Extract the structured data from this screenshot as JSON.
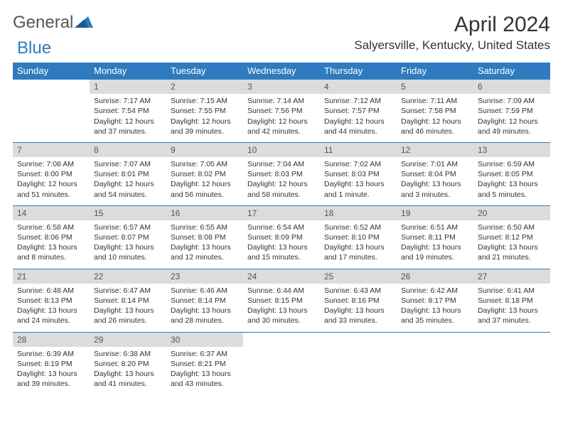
{
  "brand": {
    "general": "General",
    "blue": "Blue"
  },
  "title": "April 2024",
  "location": "Salyersville, Kentucky, United States",
  "colors": {
    "header_bg": "#2f7bbf",
    "header_text": "#ffffff",
    "daynum_bg": "#dcdcdc",
    "border": "#2f7bbf",
    "text": "#333333"
  },
  "weekdays": [
    "Sunday",
    "Monday",
    "Tuesday",
    "Wednesday",
    "Thursday",
    "Friday",
    "Saturday"
  ],
  "weeks": [
    [
      null,
      {
        "n": "1",
        "sr": "Sunrise: 7:17 AM",
        "ss": "Sunset: 7:54 PM",
        "d1": "Daylight: 12 hours",
        "d2": "and 37 minutes."
      },
      {
        "n": "2",
        "sr": "Sunrise: 7:15 AM",
        "ss": "Sunset: 7:55 PM",
        "d1": "Daylight: 12 hours",
        "d2": "and 39 minutes."
      },
      {
        "n": "3",
        "sr": "Sunrise: 7:14 AM",
        "ss": "Sunset: 7:56 PM",
        "d1": "Daylight: 12 hours",
        "d2": "and 42 minutes."
      },
      {
        "n": "4",
        "sr": "Sunrise: 7:12 AM",
        "ss": "Sunset: 7:57 PM",
        "d1": "Daylight: 12 hours",
        "d2": "and 44 minutes."
      },
      {
        "n": "5",
        "sr": "Sunrise: 7:11 AM",
        "ss": "Sunset: 7:58 PM",
        "d1": "Daylight: 12 hours",
        "d2": "and 46 minutes."
      },
      {
        "n": "6",
        "sr": "Sunrise: 7:09 AM",
        "ss": "Sunset: 7:59 PM",
        "d1": "Daylight: 12 hours",
        "d2": "and 49 minutes."
      }
    ],
    [
      {
        "n": "7",
        "sr": "Sunrise: 7:08 AM",
        "ss": "Sunset: 8:00 PM",
        "d1": "Daylight: 12 hours",
        "d2": "and 51 minutes."
      },
      {
        "n": "8",
        "sr": "Sunrise: 7:07 AM",
        "ss": "Sunset: 8:01 PM",
        "d1": "Daylight: 12 hours",
        "d2": "and 54 minutes."
      },
      {
        "n": "9",
        "sr": "Sunrise: 7:05 AM",
        "ss": "Sunset: 8:02 PM",
        "d1": "Daylight: 12 hours",
        "d2": "and 56 minutes."
      },
      {
        "n": "10",
        "sr": "Sunrise: 7:04 AM",
        "ss": "Sunset: 8:03 PM",
        "d1": "Daylight: 12 hours",
        "d2": "and 58 minutes."
      },
      {
        "n": "11",
        "sr": "Sunrise: 7:02 AM",
        "ss": "Sunset: 8:03 PM",
        "d1": "Daylight: 13 hours",
        "d2": "and 1 minute."
      },
      {
        "n": "12",
        "sr": "Sunrise: 7:01 AM",
        "ss": "Sunset: 8:04 PM",
        "d1": "Daylight: 13 hours",
        "d2": "and 3 minutes."
      },
      {
        "n": "13",
        "sr": "Sunrise: 6:59 AM",
        "ss": "Sunset: 8:05 PM",
        "d1": "Daylight: 13 hours",
        "d2": "and 5 minutes."
      }
    ],
    [
      {
        "n": "14",
        "sr": "Sunrise: 6:58 AM",
        "ss": "Sunset: 8:06 PM",
        "d1": "Daylight: 13 hours",
        "d2": "and 8 minutes."
      },
      {
        "n": "15",
        "sr": "Sunrise: 6:57 AM",
        "ss": "Sunset: 8:07 PM",
        "d1": "Daylight: 13 hours",
        "d2": "and 10 minutes."
      },
      {
        "n": "16",
        "sr": "Sunrise: 6:55 AM",
        "ss": "Sunset: 8:08 PM",
        "d1": "Daylight: 13 hours",
        "d2": "and 12 minutes."
      },
      {
        "n": "17",
        "sr": "Sunrise: 6:54 AM",
        "ss": "Sunset: 8:09 PM",
        "d1": "Daylight: 13 hours",
        "d2": "and 15 minutes."
      },
      {
        "n": "18",
        "sr": "Sunrise: 6:52 AM",
        "ss": "Sunset: 8:10 PM",
        "d1": "Daylight: 13 hours",
        "d2": "and 17 minutes."
      },
      {
        "n": "19",
        "sr": "Sunrise: 6:51 AM",
        "ss": "Sunset: 8:11 PM",
        "d1": "Daylight: 13 hours",
        "d2": "and 19 minutes."
      },
      {
        "n": "20",
        "sr": "Sunrise: 6:50 AM",
        "ss": "Sunset: 8:12 PM",
        "d1": "Daylight: 13 hours",
        "d2": "and 21 minutes."
      }
    ],
    [
      {
        "n": "21",
        "sr": "Sunrise: 6:48 AM",
        "ss": "Sunset: 8:13 PM",
        "d1": "Daylight: 13 hours",
        "d2": "and 24 minutes."
      },
      {
        "n": "22",
        "sr": "Sunrise: 6:47 AM",
        "ss": "Sunset: 8:14 PM",
        "d1": "Daylight: 13 hours",
        "d2": "and 26 minutes."
      },
      {
        "n": "23",
        "sr": "Sunrise: 6:46 AM",
        "ss": "Sunset: 8:14 PM",
        "d1": "Daylight: 13 hours",
        "d2": "and 28 minutes."
      },
      {
        "n": "24",
        "sr": "Sunrise: 6:44 AM",
        "ss": "Sunset: 8:15 PM",
        "d1": "Daylight: 13 hours",
        "d2": "and 30 minutes."
      },
      {
        "n": "25",
        "sr": "Sunrise: 6:43 AM",
        "ss": "Sunset: 8:16 PM",
        "d1": "Daylight: 13 hours",
        "d2": "and 33 minutes."
      },
      {
        "n": "26",
        "sr": "Sunrise: 6:42 AM",
        "ss": "Sunset: 8:17 PM",
        "d1": "Daylight: 13 hours",
        "d2": "and 35 minutes."
      },
      {
        "n": "27",
        "sr": "Sunrise: 6:41 AM",
        "ss": "Sunset: 8:18 PM",
        "d1": "Daylight: 13 hours",
        "d2": "and 37 minutes."
      }
    ],
    [
      {
        "n": "28",
        "sr": "Sunrise: 6:39 AM",
        "ss": "Sunset: 8:19 PM",
        "d1": "Daylight: 13 hours",
        "d2": "and 39 minutes."
      },
      {
        "n": "29",
        "sr": "Sunrise: 6:38 AM",
        "ss": "Sunset: 8:20 PM",
        "d1": "Daylight: 13 hours",
        "d2": "and 41 minutes."
      },
      {
        "n": "30",
        "sr": "Sunrise: 6:37 AM",
        "ss": "Sunset: 8:21 PM",
        "d1": "Daylight: 13 hours",
        "d2": "and 43 minutes."
      },
      null,
      null,
      null,
      null
    ]
  ]
}
